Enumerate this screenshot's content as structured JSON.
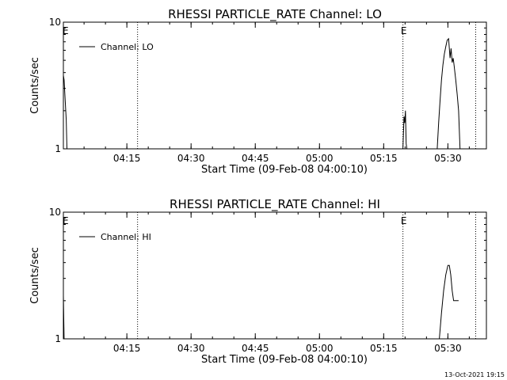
{
  "timestamp": "13-Oct-2021 19:15",
  "chart_data": [
    {
      "type": "line",
      "title": "RHESSI PARTICLE_RATE Channel: LO",
      "xlabel": "Start Time (09-Feb-08 04:00:10)",
      "ylabel": "Counts/sec",
      "y_scale": "log",
      "ylim": [
        1,
        10
      ],
      "y_ticks": [
        "1",
        "10"
      ],
      "xlim": [
        "04:00:10",
        "05:39:00"
      ],
      "x_ticks": [
        "04:15",
        "04:30",
        "04:45",
        "05:00",
        "05:15",
        "05:30"
      ],
      "vlines": [
        "04:17:30",
        "05:19:30",
        "05:36:30"
      ],
      "markers": [
        {
          "text": "E",
          "x": "04:00:30"
        },
        {
          "text": "E",
          "x": "05:19:30"
        }
      ],
      "legend": {
        "placement": "top-left",
        "entries": [
          "Channel: LO"
        ]
      },
      "series": [
        {
          "name": "Channel: LO",
          "segments": [
            [
              [
                "04:00:10",
                3.8
              ],
              [
                "04:00:20",
                3.5
              ],
              [
                "04:00:35",
                2.4
              ],
              [
                "04:00:50",
                1.7
              ],
              [
                "04:01:00",
                1.0
              ]
            ],
            [
              [
                "05:19:30",
                1.0
              ],
              [
                "05:19:45",
                1.8
              ],
              [
                "05:19:55",
                1.6
              ],
              [
                "05:20:05",
                2.0
              ],
              [
                "05:20:15",
                1.1
              ],
              [
                "05:20:25",
                1.0
              ]
            ],
            [
              [
                "05:27:30",
                1.0
              ],
              [
                "05:27:50",
                1.6
              ],
              [
                "05:28:10",
                2.4
              ],
              [
                "05:28:30",
                3.5
              ],
              [
                "05:28:50",
                4.6
              ],
              [
                "05:29:10",
                5.6
              ],
              [
                "05:29:30",
                6.4
              ],
              [
                "05:29:50",
                7.2
              ],
              [
                "05:30:10",
                7.4
              ],
              [
                "05:30:30",
                5.2
              ],
              [
                "05:30:45",
                6.2
              ],
              [
                "05:31:00",
                4.8
              ],
              [
                "05:31:15",
                5.2
              ],
              [
                "05:31:30",
                4.4
              ],
              [
                "05:31:50",
                3.5
              ],
              [
                "05:32:10",
                2.7
              ],
              [
                "05:32:30",
                2.0
              ],
              [
                "05:32:50",
                1.0
              ]
            ]
          ]
        }
      ]
    },
    {
      "type": "line",
      "title": "RHESSI PARTICLE_RATE Channel: HI",
      "xlabel": "Start Time (09-Feb-08 04:00:10)",
      "ylabel": "Counts/sec",
      "y_scale": "log",
      "ylim": [
        1,
        10
      ],
      "y_ticks": [
        "1",
        "10"
      ],
      "xlim": [
        "04:00:10",
        "05:39:00"
      ],
      "x_ticks": [
        "04:15",
        "04:30",
        "04:45",
        "05:00",
        "05:15",
        "05:30"
      ],
      "vlines": [
        "04:17:30",
        "05:19:30",
        "05:36:30"
      ],
      "markers": [
        {
          "text": "E",
          "x": "04:00:30"
        },
        {
          "text": "E",
          "x": "05:19:30"
        }
      ],
      "legend": {
        "placement": "top-left",
        "entries": [
          "Channel: HI"
        ]
      },
      "series": [
        {
          "name": "Channel: HI",
          "segments": [
            [
              [
                "04:00:10",
                2.2
              ],
              [
                "04:00:20",
                1.0
              ]
            ],
            [
              [
                "05:28:00",
                1.0
              ],
              [
                "05:28:30",
                1.6
              ],
              [
                "05:29:00",
                2.4
              ],
              [
                "05:29:30",
                3.2
              ],
              [
                "05:30:00",
                3.8
              ],
              [
                "05:30:20",
                3.8
              ],
              [
                "05:30:40",
                3.2
              ],
              [
                "05:31:00",
                2.4
              ],
              [
                "05:31:20",
                2.0
              ],
              [
                "05:32:30",
                2.0
              ]
            ]
          ]
        }
      ]
    }
  ]
}
